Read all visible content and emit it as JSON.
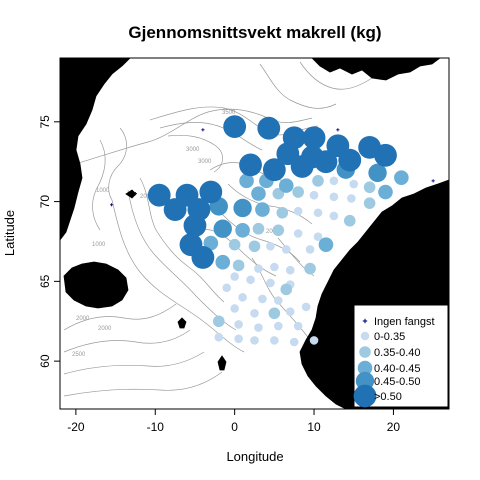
{
  "title": "Gjennomsnittsvekt makrell (kg)",
  "xlabel": "Longitude",
  "ylabel": "Latitude",
  "colors": {
    "land": "#b3b3b3",
    "contour": "#8c8c8c",
    "no_catch": "#00008b",
    "c1": "#c6dbef",
    "c2": "#9ecae1",
    "c3": "#6baed6",
    "c4": "#4292c6",
    "c5": "#2171b5"
  },
  "contour_labels": [
    "3500",
    "3000",
    "3000",
    "2000",
    "2000",
    "1000",
    "2000",
    "2500",
    "2000",
    "1000"
  ],
  "chart_data": {
    "type": "scatter",
    "xlim": [
      -22,
      27
    ],
    "ylim": [
      57,
      79
    ],
    "x_ticks": [
      "-20",
      "-10",
      "0",
      "10",
      "20"
    ],
    "y_ticks": [
      "60",
      "65",
      "70",
      "75"
    ],
    "x_tick_values": [
      -20,
      -10,
      0,
      10,
      20
    ],
    "y_tick_values": [
      60,
      65,
      70,
      75
    ],
    "legend": {
      "placement": "bottom-right",
      "entries": [
        {
          "label": "Ingen fangst",
          "class": 0
        },
        {
          "label": "0-0.35",
          "class": 1
        },
        {
          "label": "0.35-0.40",
          "class": 2
        },
        {
          "label": "0.40-0.45",
          "class": 3
        },
        {
          "label": "0.45-0.50",
          "class": 4
        },
        {
          "label": ">0.50",
          "class": 5
        }
      ]
    },
    "points": [
      {
        "lon": 0,
        "lat": 74.7,
        "class": 5
      },
      {
        "lon": 4.3,
        "lat": 74.6,
        "class": 5
      },
      {
        "lon": 7.5,
        "lat": 74.0,
        "class": 5
      },
      {
        "lon": 10.0,
        "lat": 74.0,
        "class": 5
      },
      {
        "lon": 13.0,
        "lat": 73.5,
        "class": 5
      },
      {
        "lon": 17.0,
        "lat": 73.4,
        "class": 5
      },
      {
        "lon": 6.7,
        "lat": 73.0,
        "class": 5
      },
      {
        "lon": 9.8,
        "lat": 72.8,
        "class": 5
      },
      {
        "lon": 11.5,
        "lat": 72.5,
        "class": 5
      },
      {
        "lon": 14.5,
        "lat": 72.6,
        "class": 5
      },
      {
        "lon": 19.0,
        "lat": 72.9,
        "class": 5
      },
      {
        "lon": 2.0,
        "lat": 72.3,
        "class": 5
      },
      {
        "lon": 5.0,
        "lat": 72.0,
        "class": 5
      },
      {
        "lon": 8.5,
        "lat": 72.2,
        "class": 5
      },
      {
        "lon": 14.0,
        "lat": 72.0,
        "class": 4
      },
      {
        "lon": 18.0,
        "lat": 71.8,
        "class": 4
      },
      {
        "lon": 21.0,
        "lat": 71.5,
        "class": 3
      },
      {
        "lon": 1.5,
        "lat": 71.3,
        "class": 3
      },
      {
        "lon": 4.0,
        "lat": 71.3,
        "class": 3
      },
      {
        "lon": 6.5,
        "lat": 71.0,
        "class": 3
      },
      {
        "lon": 10.5,
        "lat": 71.3,
        "class": 2
      },
      {
        "lon": 12.5,
        "lat": 71.3,
        "class": 1
      },
      {
        "lon": 15.0,
        "lat": 71.1,
        "class": 1
      },
      {
        "lon": 17.0,
        "lat": 70.9,
        "class": 2
      },
      {
        "lon": 19.0,
        "lat": 70.6,
        "class": 3
      },
      {
        "lon": -9.5,
        "lat": 70.4,
        "class": 5
      },
      {
        "lon": -6.0,
        "lat": 70.4,
        "class": 5
      },
      {
        "lon": -3.0,
        "lat": 70.6,
        "class": 5
      },
      {
        "lon": 3.0,
        "lat": 70.5,
        "class": 3
      },
      {
        "lon": 5.5,
        "lat": 70.5,
        "class": 2
      },
      {
        "lon": 8.0,
        "lat": 70.6,
        "class": 2
      },
      {
        "lon": 10.0,
        "lat": 70.4,
        "class": 1
      },
      {
        "lon": 12.5,
        "lat": 70.3,
        "class": 1
      },
      {
        "lon": 14.7,
        "lat": 70.2,
        "class": 1
      },
      {
        "lon": 17.0,
        "lat": 69.9,
        "class": 2
      },
      {
        "lon": -7.5,
        "lat": 69.5,
        "class": 5
      },
      {
        "lon": -4.5,
        "lat": 69.5,
        "class": 5
      },
      {
        "lon": -2.0,
        "lat": 69.7,
        "class": 4
      },
      {
        "lon": 1.0,
        "lat": 69.6,
        "class": 4
      },
      {
        "lon": 3.5,
        "lat": 69.5,
        "class": 3
      },
      {
        "lon": 6.0,
        "lat": 69.3,
        "class": 2
      },
      {
        "lon": 8.0,
        "lat": 69.4,
        "class": 1
      },
      {
        "lon": 10.5,
        "lat": 69.3,
        "class": 1
      },
      {
        "lon": 12.5,
        "lat": 69.1,
        "class": 1
      },
      {
        "lon": 14.5,
        "lat": 68.8,
        "class": 2
      },
      {
        "lon": -5.0,
        "lat": 68.5,
        "class": 5
      },
      {
        "lon": -1.5,
        "lat": 68.3,
        "class": 4
      },
      {
        "lon": 1.0,
        "lat": 68.2,
        "class": 3
      },
      {
        "lon": 3.0,
        "lat": 68.3,
        "class": 2
      },
      {
        "lon": 5.5,
        "lat": 68.2,
        "class": 2
      },
      {
        "lon": 8.0,
        "lat": 68.0,
        "class": 1
      },
      {
        "lon": 10.5,
        "lat": 67.8,
        "class": 1
      },
      {
        "lon": -5.5,
        "lat": 67.3,
        "class": 5
      },
      {
        "lon": -3.0,
        "lat": 67.4,
        "class": 3
      },
      {
        "lon": 0.0,
        "lat": 67.3,
        "class": 2
      },
      {
        "lon": 2.5,
        "lat": 67.2,
        "class": 2
      },
      {
        "lon": 4.5,
        "lat": 67.2,
        "class": 1
      },
      {
        "lon": 6.5,
        "lat": 67.0,
        "class": 1
      },
      {
        "lon": 9.5,
        "lat": 67.0,
        "class": 1
      },
      {
        "lon": 11.5,
        "lat": 67.3,
        "class": 3
      },
      {
        "lon": -4.0,
        "lat": 66.5,
        "class": 5
      },
      {
        "lon": -1.5,
        "lat": 66.2,
        "class": 3
      },
      {
        "lon": 0.5,
        "lat": 66.0,
        "class": 2
      },
      {
        "lon": 3.0,
        "lat": 65.8,
        "class": 1
      },
      {
        "lon": 5.0,
        "lat": 65.9,
        "class": 1
      },
      {
        "lon": 7.0,
        "lat": 65.7,
        "class": 1
      },
      {
        "lon": 9.5,
        "lat": 65.8,
        "class": 2
      },
      {
        "lon": 0.0,
        "lat": 65.3,
        "class": 1
      },
      {
        "lon": 2.0,
        "lat": 65.1,
        "class": 1
      },
      {
        "lon": 4.5,
        "lat": 64.9,
        "class": 1
      },
      {
        "lon": 7.0,
        "lat": 64.8,
        "class": 1
      },
      {
        "lon": -1.0,
        "lat": 64.6,
        "class": 1
      },
      {
        "lon": 6.5,
        "lat": 64.5,
        "class": 2
      },
      {
        "lon": 1.0,
        "lat": 64.0,
        "class": 1
      },
      {
        "lon": 3.5,
        "lat": 63.9,
        "class": 1
      },
      {
        "lon": 5.5,
        "lat": 63.8,
        "class": 1
      },
      {
        "lon": 0.0,
        "lat": 63.3,
        "class": 1
      },
      {
        "lon": 2.5,
        "lat": 63.0,
        "class": 1
      },
      {
        "lon": 5.0,
        "lat": 63.0,
        "class": 2
      },
      {
        "lon": 7.0,
        "lat": 63.1,
        "class": 1
      },
      {
        "lon": 9.0,
        "lat": 63.4,
        "class": 1
      },
      {
        "lon": -2.0,
        "lat": 62.5,
        "class": 2
      },
      {
        "lon": 0.5,
        "lat": 62.3,
        "class": 1
      },
      {
        "lon": 3.0,
        "lat": 62.1,
        "class": 1
      },
      {
        "lon": 5.5,
        "lat": 62.2,
        "class": 1
      },
      {
        "lon": 8.0,
        "lat": 62.2,
        "class": 1
      },
      {
        "lon": -2.0,
        "lat": 61.5,
        "class": 1
      },
      {
        "lon": 0.5,
        "lat": 61.4,
        "class": 1
      },
      {
        "lon": 2.5,
        "lat": 61.3,
        "class": 1
      },
      {
        "lon": 5.0,
        "lat": 61.3,
        "class": 1
      },
      {
        "lon": 7.5,
        "lat": 61.2,
        "class": 1
      },
      {
        "lon": 10.0,
        "lat": 61.3,
        "class": 1
      },
      {
        "lon": -3.5,
        "lat": 70.3,
        "class": 0
      },
      {
        "lon": -12.5,
        "lat": 70.5,
        "class": 0
      },
      {
        "lon": -15.5,
        "lat": 69.8,
        "class": 0
      },
      {
        "lon": 25.0,
        "lat": 71.3,
        "class": 0
      },
      {
        "lon": 13.0,
        "lat": 74.5,
        "class": 0
      },
      {
        "lon": -4.0,
        "lat": 74.5,
        "class": 0
      }
    ]
  }
}
